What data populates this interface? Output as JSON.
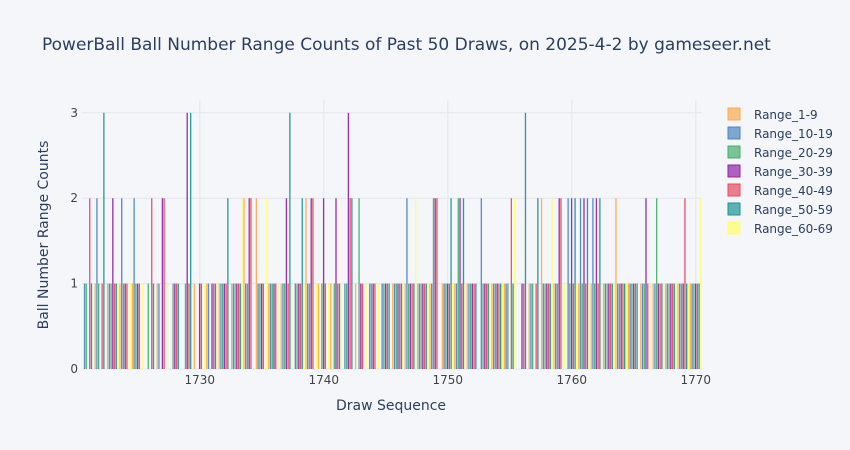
{
  "chart_data": {
    "type": "bar",
    "title": "PowerBall Ball Number Range Counts of Past 50 Draws, on 2025-4-2 by gameseer.net",
    "xlabel": "Draw Sequence",
    "ylabel": "Ball Number Range Counts",
    "xlim": [
      1720.5,
      1770.5
    ],
    "ylim": [
      0,
      3.15
    ],
    "x_ticks": [
      "1730",
      "1740",
      "1750",
      "1760",
      "1770"
    ],
    "y_ticks": [
      "0",
      "1",
      "2",
      "3"
    ],
    "x": [
      1721,
      1722,
      1723,
      1724,
      1725,
      1726,
      1727,
      1728,
      1729,
      1730,
      1731,
      1732,
      1733,
      1734,
      1735,
      1736,
      1737,
      1738,
      1739,
      1740,
      1741,
      1742,
      1743,
      1744,
      1745,
      1746,
      1747,
      1748,
      1749,
      1750,
      1751,
      1752,
      1753,
      1754,
      1755,
      1756,
      1757,
      1758,
      1759,
      1760,
      1761,
      1762,
      1763,
      1764,
      1765,
      1766,
      1767,
      1768,
      1769,
      1770
    ],
    "series": [
      {
        "name": "Range_1-9",
        "color": "#ffa94d",
        "values": [
          0,
          1,
          1,
          1,
          1,
          0,
          1,
          0,
          0,
          1,
          1,
          1,
          1,
          2,
          2,
          1,
          1,
          0,
          2,
          1,
          1,
          0,
          1,
          0,
          0,
          1,
          1,
          1,
          1,
          1,
          1,
          1,
          0,
          1,
          1,
          0,
          1,
          2,
          1,
          0,
          1,
          1,
          1,
          2,
          1,
          1,
          1,
          1,
          1,
          1
        ]
      },
      {
        "name": "Range_10-19",
        "color": "#4a86c0",
        "values": [
          1,
          2,
          1,
          2,
          2,
          0,
          1,
          0,
          0,
          0,
          1,
          1,
          1,
          1,
          1,
          1,
          1,
          1,
          1,
          0,
          0,
          1,
          0,
          1,
          1,
          1,
          2,
          1,
          1,
          1,
          1,
          1,
          2,
          1,
          1,
          0,
          1,
          1,
          1,
          2,
          2,
          2,
          1,
          1,
          1,
          1,
          1,
          1,
          1,
          1
        ]
      },
      {
        "name": "Range_20-29",
        "color": "#43b06b",
        "values": [
          1,
          1,
          1,
          1,
          1,
          1,
          0,
          1,
          1,
          0,
          0,
          1,
          1,
          1,
          1,
          1,
          1,
          1,
          1,
          1,
          1,
          1,
          2,
          1,
          1,
          1,
          1,
          1,
          2,
          1,
          2,
          1,
          1,
          1,
          1,
          0,
          1,
          1,
          1,
          1,
          1,
          1,
          1,
          1,
          1,
          1,
          2,
          1,
          1,
          1
        ]
      },
      {
        "name": "Range_30-39",
        "color": "#8e24aa",
        "values": [
          0,
          0,
          2,
          1,
          1,
          0,
          2,
          1,
          3,
          1,
          1,
          1,
          1,
          2,
          1,
          1,
          2,
          1,
          2,
          2,
          2,
          3,
          1,
          1,
          1,
          1,
          1,
          1,
          2,
          1,
          2,
          1,
          1,
          1,
          0,
          1,
          0,
          1,
          2,
          2,
          2,
          2,
          1,
          1,
          1,
          2,
          1,
          1,
          1,
          1
        ]
      },
      {
        "name": "Range_40-49",
        "color": "#e64a5f",
        "values": [
          2,
          1,
          1,
          1,
          1,
          2,
          2,
          1,
          1,
          1,
          1,
          1,
          1,
          2,
          1,
          1,
          1,
          1,
          2,
          1,
          1,
          2,
          1,
          1,
          1,
          1,
          1,
          1,
          2,
          1,
          1,
          1,
          1,
          1,
          2,
          1,
          1,
          1,
          2,
          1,
          1,
          1,
          1,
          1,
          1,
          1,
          1,
          1,
          2,
          1
        ]
      },
      {
        "name": "Range_50-59",
        "color": "#1c9494",
        "values": [
          1,
          3,
          1,
          0,
          0,
          1,
          0,
          1,
          3,
          0,
          1,
          2,
          1,
          0,
          0,
          0,
          3,
          2,
          0,
          0,
          1,
          2,
          0,
          0,
          1,
          1,
          1,
          1,
          0,
          2,
          2,
          1,
          1,
          1,
          1,
          3,
          2,
          1,
          0,
          2,
          2,
          2,
          1,
          1,
          1,
          0,
          1,
          1,
          1,
          1
        ]
      },
      {
        "name": "Range_60-69",
        "color": "#ffff66",
        "values": [
          0,
          0,
          1,
          1,
          1,
          0,
          1,
          0,
          0,
          1,
          1,
          0,
          2,
          0,
          2,
          1,
          1,
          1,
          1,
          1,
          1,
          0,
          1,
          1,
          0,
          1,
          2,
          1,
          0,
          1,
          1,
          0,
          1,
          1,
          2,
          0,
          0,
          2,
          1,
          1,
          1,
          1,
          1,
          1,
          0,
          1,
          1,
          1,
          1,
          2
        ]
      }
    ],
    "legend_position": "right"
  }
}
